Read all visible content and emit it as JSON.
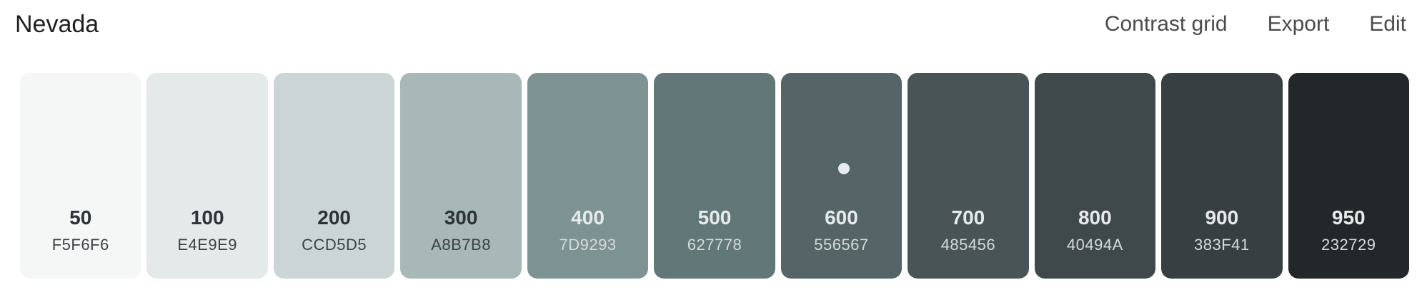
{
  "header": {
    "title": "Nevada",
    "actions": {
      "contrast_grid": "Contrast grid",
      "export": "Export",
      "edit": "Edit"
    }
  },
  "palette": {
    "swatches": [
      {
        "shade": "50",
        "hex": "F5F6F6",
        "color": "#F5F6F6",
        "tone": "light"
      },
      {
        "shade": "100",
        "hex": "E4E9E9",
        "color": "#E4E9E9",
        "tone": "light"
      },
      {
        "shade": "200",
        "hex": "CCD5D5",
        "color": "#CCD5D5",
        "tone": "light"
      },
      {
        "shade": "300",
        "hex": "A8B7B8",
        "color": "#A8B7B8",
        "tone": "light"
      },
      {
        "shade": "400",
        "hex": "7D9293",
        "color": "#7D9293",
        "tone": "dark"
      },
      {
        "shade": "500",
        "hex": "627778",
        "color": "#627778",
        "tone": "dark"
      },
      {
        "shade": "600",
        "hex": "556567",
        "color": "#556567",
        "tone": "dark",
        "marker": true
      },
      {
        "shade": "700",
        "hex": "485456",
        "color": "#485456",
        "tone": "dark"
      },
      {
        "shade": "800",
        "hex": "40494A",
        "color": "#40494A",
        "tone": "dark"
      },
      {
        "shade": "900",
        "hex": "383F41",
        "color": "#383F41",
        "tone": "dark"
      },
      {
        "shade": "950",
        "hex": "232729",
        "color": "#232729",
        "tone": "dark"
      }
    ]
  }
}
